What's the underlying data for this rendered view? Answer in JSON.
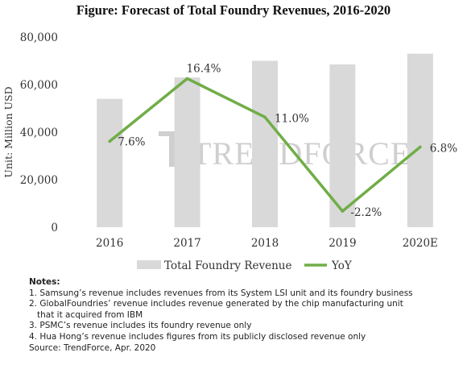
{
  "title": "Figure: Forecast of Total Foundry Revenues, 2016-2020",
  "watermark": "TRENDFORCE",
  "colors": {
    "bar": "#d9d9d9",
    "line": "#70ad47",
    "text": "#333333"
  },
  "chart_data": {
    "type": "bar",
    "categories": [
      "2016",
      "2017",
      "2018",
      "2019",
      "2020E"
    ],
    "ylabel": "Unit: Million USD",
    "xlabel": "",
    "ylim": [
      0,
      80000
    ],
    "yticks": [
      "0",
      "20,000",
      "40,000",
      "60,000",
      "80,000"
    ],
    "ytick_values": [
      0,
      20000,
      40000,
      60000,
      80000
    ],
    "series": [
      {
        "name": "Total Foundry Revenue",
        "type": "bar",
        "values": [
          54000,
          63000,
          70000,
          68500,
          73000
        ]
      },
      {
        "name": "YoY",
        "type": "line",
        "values": [
          7.6,
          16.4,
          11.0,
          -2.2,
          6.8
        ],
        "labels": [
          "7.6%",
          "16.4%",
          "11.0%",
          "-2.2%",
          "6.8%"
        ]
      }
    ],
    "legend": "bottom",
    "grid": false
  },
  "notes": {
    "title": "Notes:",
    "lines": [
      "1. Samsung’s revenue includes revenues from its System LSI unit and its foundry business",
      "2. GlobalFoundries’ revenue includes revenue generated by the chip manufacturing unit",
      "that it acquired from IBM",
      "3. PSMC’s revenue includes its foundry revenue only",
      "4. Hua Hong’s revenue includes figures from its publicly disclosed revenue only",
      "Source: TrendForce, Apr. 2020"
    ]
  }
}
